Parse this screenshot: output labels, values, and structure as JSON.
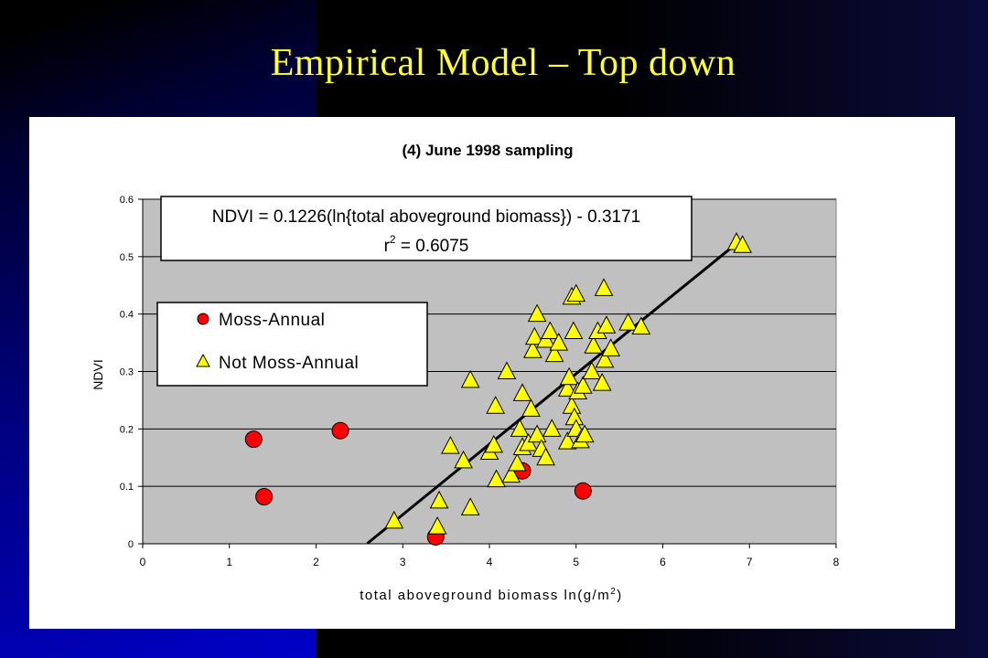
{
  "slide": {
    "title": "Empirical Model – Top down"
  },
  "chart_data": {
    "type": "scatter",
    "title": "(4) June 1998 sampling",
    "xlabel": "total aboveground biomass  ln(g/m",
    "xlabel_sup": "2",
    "xlabel_end": ")",
    "ylabel": "NDVI",
    "xlim": [
      0,
      8
    ],
    "ylim": [
      0,
      0.6
    ],
    "xticks": [
      "0",
      "1",
      "2",
      "3",
      "4",
      "5",
      "6",
      "7",
      "8"
    ],
    "yticks": [
      "0",
      "0.1",
      "0.2",
      "0.3",
      "0.4",
      "0.5",
      "0.6"
    ],
    "grid": true,
    "legend_position": "left",
    "equation": {
      "line1": "NDVI = 0.1226(ln{total aboveground biomass}) - 0.3171",
      "line2_prefix": "r",
      "line2_sup": "2",
      "line2_rest": " = 0.6075"
    },
    "trendline": {
      "slope": 0.1226,
      "intercept": -0.3171,
      "x_range": [
        2.59,
        6.9
      ]
    },
    "colors": {
      "moss": "#ff0000",
      "not_moss": "#ffff00",
      "plot_bg": "#c0c0c0",
      "line": "#000000"
    },
    "series": [
      {
        "name": "Moss-Annual",
        "marker": "circle",
        "points": [
          [
            1.28,
            0.182
          ],
          [
            1.4,
            0.082
          ],
          [
            2.28,
            0.197
          ],
          [
            3.38,
            0.012
          ],
          [
            4.38,
            0.127
          ],
          [
            5.08,
            0.092
          ]
        ]
      },
      {
        "name": "Not Moss-Annual",
        "marker": "triangle",
        "points": [
          [
            2.9,
            0.04
          ],
          [
            3.42,
            0.075
          ],
          [
            3.4,
            0.03
          ],
          [
            3.55,
            0.17
          ],
          [
            3.7,
            0.145
          ],
          [
            3.78,
            0.063
          ],
          [
            3.78,
            0.285
          ],
          [
            4.0,
            0.16
          ],
          [
            4.05,
            0.172
          ],
          [
            4.07,
            0.24
          ],
          [
            4.08,
            0.112
          ],
          [
            4.2,
            0.3
          ],
          [
            4.25,
            0.12
          ],
          [
            4.32,
            0.14
          ],
          [
            4.35,
            0.2
          ],
          [
            4.38,
            0.262
          ],
          [
            4.38,
            0.168
          ],
          [
            4.45,
            0.175
          ],
          [
            4.48,
            0.235
          ],
          [
            4.5,
            0.337
          ],
          [
            4.52,
            0.36
          ],
          [
            4.55,
            0.4
          ],
          [
            4.55,
            0.19
          ],
          [
            4.6,
            0.165
          ],
          [
            4.65,
            0.355
          ],
          [
            4.65,
            0.15
          ],
          [
            4.7,
            0.37
          ],
          [
            4.72,
            0.2
          ],
          [
            4.75,
            0.33
          ],
          [
            4.8,
            0.35
          ],
          [
            4.9,
            0.178
          ],
          [
            4.9,
            0.27
          ],
          [
            4.92,
            0.29
          ],
          [
            4.95,
            0.43
          ],
          [
            4.95,
            0.24
          ],
          [
            4.97,
            0.37
          ],
          [
            4.98,
            0.22
          ],
          [
            5.0,
            0.435
          ],
          [
            5.0,
            0.2
          ],
          [
            5.02,
            0.265
          ],
          [
            5.05,
            0.18
          ],
          [
            5.08,
            0.275
          ],
          [
            5.1,
            0.19
          ],
          [
            5.18,
            0.3
          ],
          [
            5.2,
            0.345
          ],
          [
            5.25,
            0.37
          ],
          [
            5.3,
            0.28
          ],
          [
            5.32,
            0.445
          ],
          [
            5.33,
            0.32
          ],
          [
            5.35,
            0.38
          ],
          [
            5.4,
            0.34
          ],
          [
            5.6,
            0.385
          ],
          [
            5.75,
            0.378
          ],
          [
            6.85,
            0.525
          ],
          [
            6.92,
            0.52
          ]
        ]
      }
    ]
  }
}
